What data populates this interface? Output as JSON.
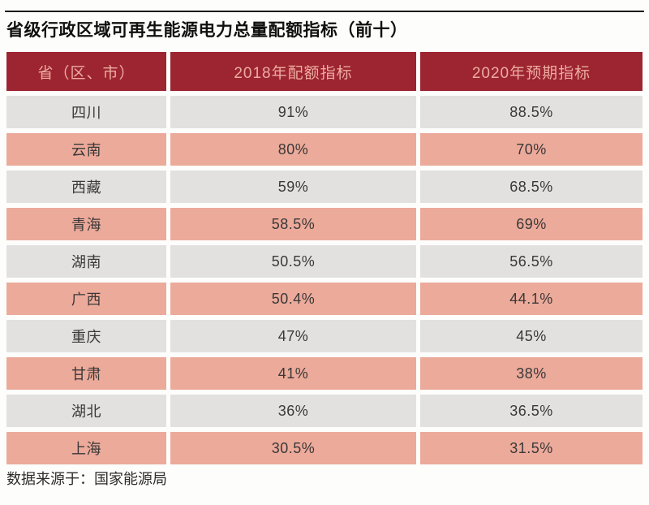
{
  "page": {
    "title": "省级行政区域可再生能源电力总量配额指标（前十）",
    "source_note": "数据来源于：国家能源局"
  },
  "table": {
    "columns": {
      "province": "省（区、市）",
      "quota_2018": "2018年配额指标",
      "quota_2020": "2020年预期指标"
    },
    "rows": [
      {
        "province": "四川",
        "quota_2018": "91%",
        "quota_2020": "88.5%"
      },
      {
        "province": "云南",
        "quota_2018": "80%",
        "quota_2020": "70%"
      },
      {
        "province": "西藏",
        "quota_2018": "59%",
        "quota_2020": "68.5%"
      },
      {
        "province": "青海",
        "quota_2018": "58.5%",
        "quota_2020": "69%"
      },
      {
        "province": "湖南",
        "quota_2018": "50.5%",
        "quota_2020": "56.5%"
      },
      {
        "province": "广西",
        "quota_2018": "50.4%",
        "quota_2020": "44.1%"
      },
      {
        "province": "重庆",
        "quota_2018": "47%",
        "quota_2020": "45%"
      },
      {
        "province": "甘肃",
        "quota_2018": "41%",
        "quota_2020": "38%"
      },
      {
        "province": "湖北",
        "quota_2018": "36%",
        "quota_2020": "36.5%"
      },
      {
        "province": "上海",
        "quota_2018": "30.5%",
        "quota_2020": "31.5%"
      }
    ]
  },
  "colors": {
    "header_bg": "#9c2531",
    "header_text": "#eeaba1",
    "row_gray": "#e3e1e0",
    "row_pink": "#ecaa9a",
    "cell_text": "#3a3838",
    "top_rule": "#1b1b1b",
    "background": "#fdfdfb"
  },
  "chart_data": {
    "type": "table",
    "title": "省级行政区域可再生能源电力总量配额指标（前十）",
    "columns": [
      "省（区、市）",
      "2018年配额指标",
      "2020年预期指标"
    ],
    "categories": [
      "四川",
      "云南",
      "西藏",
      "青海",
      "湖南",
      "广西",
      "重庆",
      "甘肃",
      "湖北",
      "上海"
    ],
    "series": [
      {
        "name": "2018年配额指标",
        "values": [
          91,
          80,
          59,
          58.5,
          50.5,
          50.4,
          47,
          41,
          36,
          30.5
        ]
      },
      {
        "name": "2020年预期指标",
        "values": [
          88.5,
          70,
          68.5,
          69,
          56.5,
          44.1,
          45,
          38,
          36.5,
          31.5
        ]
      }
    ],
    "unit": "%",
    "source": "数据来源于：国家能源局"
  }
}
